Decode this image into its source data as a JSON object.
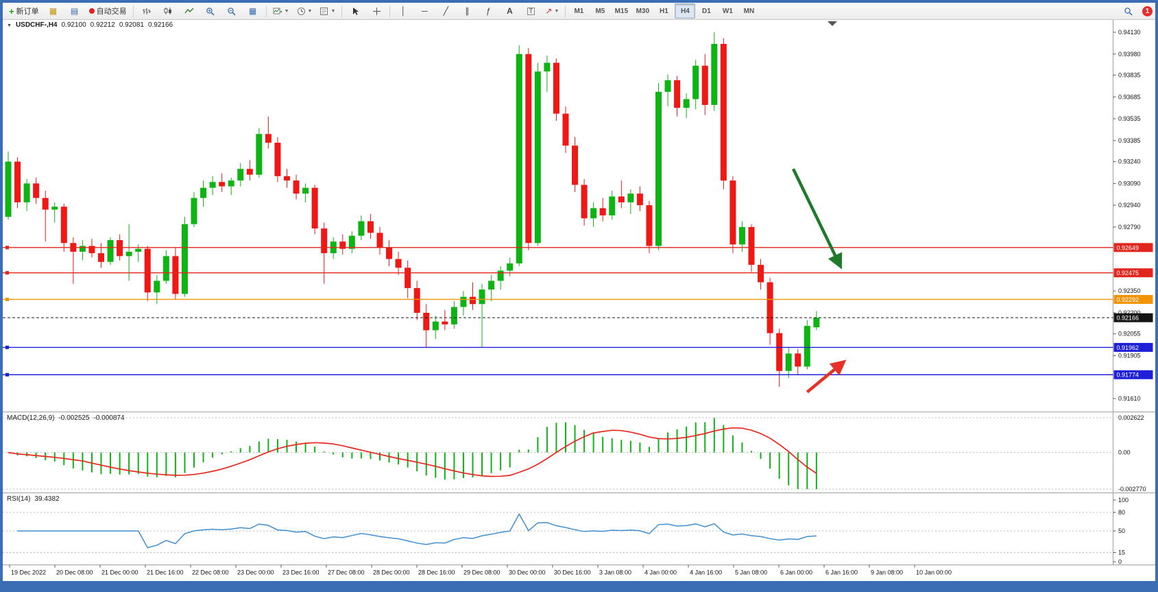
{
  "toolbar": {
    "new_order": "新订单",
    "autotrading": "自动交易",
    "timeframes": [
      "M1",
      "M5",
      "M15",
      "M30",
      "H1",
      "H4",
      "D1",
      "W1",
      "MN"
    ],
    "active_timeframe": "H4",
    "badge_count": "1"
  },
  "chart": {
    "symbol_period": "USDCHF-,H4",
    "open": "0.92100",
    "high": "0.92212",
    "low": "0.92081",
    "close": "0.92166"
  },
  "macd_panel": {
    "title": "MACD(12,26,9)",
    "main_value": "-0.002525",
    "signal_value": "-0.000874"
  },
  "rsi_panel": {
    "title": "RSI(14)",
    "value": "39.4382"
  },
  "chart_data": {
    "type": "candlestick",
    "symbol": "USDCHF-",
    "timeframe": "H4",
    "colors": {
      "up": "#0eb414",
      "down": "#f01814",
      "macd_histogram": "#0eb414",
      "macd_signal": "#e8261b",
      "rsi_line": "#3f8fd2"
    },
    "y_axis": {
      "max": 0.9413,
      "min": 0.9161,
      "ticks": [
        "0.94130",
        "0.93980",
        "0.93835",
        "0.93685",
        "0.93535",
        "0.93385",
        "0.93240",
        "0.93090",
        "0.92940",
        "0.92790",
        "0.92350",
        "0.92200",
        "0.92055",
        "0.91905",
        "0.91610"
      ]
    },
    "x_labels": [
      "19 Dec 2022",
      "20 Dec 08:00",
      "21 Dec 00:00",
      "21 Dec 16:00",
      "22 Dec 08:00",
      "23 Dec 00:00",
      "23 Dec 16:00",
      "27 Dec 08:00",
      "28 Dec 00:00",
      "28 Dec 16:00",
      "29 Dec 08:00",
      "30 Dec 00:00",
      "30 Dec 16:00",
      "3 Jan 08:00",
      "4 Jan 00:00",
      "4 Jan 16:00",
      "5 Jan 08:00",
      "6 Jan 00:00",
      "6 Jan 16:00",
      "9 Jan 08:00",
      "10 Jan 00:00"
    ],
    "candles": [
      [
        0.9286,
        0.9331,
        0.9284,
        0.9324
      ],
      [
        0.9324,
        0.9327,
        0.9292,
        0.9296
      ],
      [
        0.9296,
        0.9312,
        0.929,
        0.9309
      ],
      [
        0.9309,
        0.9313,
        0.9295,
        0.9299
      ],
      [
        0.9299,
        0.9304,
        0.9269,
        0.9291
      ],
      [
        0.9291,
        0.9296,
        0.9282,
        0.9293
      ],
      [
        0.9293,
        0.9295,
        0.9262,
        0.9268
      ],
      [
        0.9268,
        0.9272,
        0.924,
        0.9262
      ],
      [
        0.9262,
        0.927,
        0.9256,
        0.9266
      ],
      [
        0.9266,
        0.9271,
        0.9258,
        0.9261
      ],
      [
        0.9261,
        0.9268,
        0.9251,
        0.9255
      ],
      [
        0.9255,
        0.9272,
        0.9253,
        0.927
      ],
      [
        0.927,
        0.9274,
        0.9256,
        0.9259
      ],
      [
        0.9259,
        0.9281,
        0.9242,
        0.9262
      ],
      [
        0.9262,
        0.9267,
        0.9255,
        0.9264
      ],
      [
        0.9264,
        0.9266,
        0.9228,
        0.9234
      ],
      [
        0.9234,
        0.9246,
        0.9226,
        0.9242
      ],
      [
        0.9242,
        0.9263,
        0.924,
        0.9259
      ],
      [
        0.9259,
        0.9265,
        0.9229,
        0.9233
      ],
      [
        0.9233,
        0.9286,
        0.9231,
        0.9281
      ],
      [
        0.9281,
        0.9303,
        0.9279,
        0.9299
      ],
      [
        0.9299,
        0.9311,
        0.9293,
        0.9306
      ],
      [
        0.9306,
        0.9314,
        0.9301,
        0.931
      ],
      [
        0.931,
        0.9316,
        0.9303,
        0.9307
      ],
      [
        0.9307,
        0.9313,
        0.9301,
        0.9311
      ],
      [
        0.9311,
        0.9323,
        0.9307,
        0.9319
      ],
      [
        0.9319,
        0.9325,
        0.9311,
        0.9315
      ],
      [
        0.9315,
        0.9347,
        0.9313,
        0.9343
      ],
      [
        0.9343,
        0.9355,
        0.9333,
        0.9337
      ],
      [
        0.9337,
        0.9341,
        0.931,
        0.9314
      ],
      [
        0.9314,
        0.9319,
        0.9306,
        0.9311
      ],
      [
        0.9311,
        0.9315,
        0.9298,
        0.9302
      ],
      [
        0.9302,
        0.9309,
        0.9296,
        0.9306
      ],
      [
        0.9306,
        0.9308,
        0.9274,
        0.9278
      ],
      [
        0.9278,
        0.9282,
        0.924,
        0.9261
      ],
      [
        0.9261,
        0.9272,
        0.9257,
        0.9269
      ],
      [
        0.9269,
        0.9274,
        0.926,
        0.9264
      ],
      [
        0.9264,
        0.9276,
        0.9261,
        0.9273
      ],
      [
        0.9273,
        0.9287,
        0.927,
        0.9283
      ],
      [
        0.9283,
        0.9288,
        0.9271,
        0.9275
      ],
      [
        0.9275,
        0.9279,
        0.926,
        0.9265
      ],
      [
        0.9265,
        0.927,
        0.9252,
        0.9257
      ],
      [
        0.9257,
        0.9262,
        0.9246,
        0.9251
      ],
      [
        0.9251,
        0.9256,
        0.923,
        0.9237
      ],
      [
        0.9237,
        0.9242,
        0.9215,
        0.922
      ],
      [
        0.922,
        0.9226,
        0.9196,
        0.9208
      ],
      [
        0.9208,
        0.9218,
        0.9202,
        0.9214
      ],
      [
        0.9214,
        0.9222,
        0.9208,
        0.9212
      ],
      [
        0.9212,
        0.9228,
        0.9209,
        0.9224
      ],
      [
        0.9224,
        0.9235,
        0.9218,
        0.9231
      ],
      [
        0.9231,
        0.9241,
        0.9222,
        0.9226
      ],
      [
        0.9226,
        0.924,
        0.9196,
        0.9236
      ],
      [
        0.9236,
        0.9246,
        0.9228,
        0.9242
      ],
      [
        0.9242,
        0.9252,
        0.9236,
        0.9249
      ],
      [
        0.9249,
        0.9258,
        0.9245,
        0.9254
      ],
      [
        0.9254,
        0.9404,
        0.9252,
        0.9398
      ],
      [
        0.9398,
        0.9402,
        0.9263,
        0.9268
      ],
      [
        0.9268,
        0.9392,
        0.9266,
        0.9386
      ],
      [
        0.9386,
        0.9397,
        0.9372,
        0.9392
      ],
      [
        0.9392,
        0.9395,
        0.9352,
        0.9357
      ],
      [
        0.9357,
        0.9362,
        0.933,
        0.9335
      ],
      [
        0.9335,
        0.9341,
        0.9303,
        0.9308
      ],
      [
        0.9308,
        0.9312,
        0.928,
        0.9285
      ],
      [
        0.9285,
        0.9296,
        0.9279,
        0.9292
      ],
      [
        0.9292,
        0.9299,
        0.9283,
        0.9287
      ],
      [
        0.9287,
        0.9304,
        0.9284,
        0.93
      ],
      [
        0.93,
        0.9311,
        0.9292,
        0.9296
      ],
      [
        0.9296,
        0.9305,
        0.9288,
        0.9302
      ],
      [
        0.9302,
        0.9307,
        0.929,
        0.9294
      ],
      [
        0.9294,
        0.9297,
        0.9261,
        0.9266
      ],
      [
        0.9266,
        0.9378,
        0.9263,
        0.9372
      ],
      [
        0.9372,
        0.9384,
        0.9362,
        0.938
      ],
      [
        0.938,
        0.9383,
        0.9355,
        0.9361
      ],
      [
        0.9361,
        0.9371,
        0.9354,
        0.9367
      ],
      [
        0.9367,
        0.9394,
        0.936,
        0.939
      ],
      [
        0.939,
        0.9398,
        0.9356,
        0.9363
      ],
      [
        0.9363,
        0.9413,
        0.9359,
        0.9405
      ],
      [
        0.9405,
        0.9409,
        0.9305,
        0.9311
      ],
      [
        0.9311,
        0.9314,
        0.9261,
        0.9267
      ],
      [
        0.9267,
        0.9283,
        0.9262,
        0.9279
      ],
      [
        0.9279,
        0.9281,
        0.9248,
        0.9253
      ],
      [
        0.9253,
        0.9257,
        0.9236,
        0.9241
      ],
      [
        0.9241,
        0.9244,
        0.9198,
        0.9206
      ],
      [
        0.9206,
        0.9209,
        0.9169,
        0.918
      ],
      [
        0.918,
        0.9196,
        0.9175,
        0.9192
      ],
      [
        0.9192,
        0.9195,
        0.9177,
        0.9183
      ],
      [
        0.9183,
        0.9215,
        0.9181,
        0.9211
      ],
      [
        0.921,
        0.92212,
        0.92081,
        0.92166
      ]
    ],
    "hlines": [
      {
        "price": 0.92649,
        "label": "0.92649",
        "color": "#e3261d",
        "name": "resistance-line-1"
      },
      {
        "price": 0.92475,
        "label": "0.92475",
        "color": "#e3261d",
        "name": "resistance-line-2"
      },
      {
        "price": 0.92292,
        "label": "0.92292",
        "color": "#f2940a",
        "name": "pivot-line"
      },
      {
        "price": 0.91962,
        "label": "0.91962",
        "color": "#1f1fd9",
        "name": "support-line-1"
      },
      {
        "price": 0.91774,
        "label": "0.91774",
        "color": "#1f1fd9",
        "name": "support-line-2"
      }
    ],
    "current_price": {
      "price": 0.92166,
      "label": "0.92166",
      "color": "#151515"
    },
    "arrows": [
      {
        "name": "down-trend-arrow",
        "color": "#217a2b",
        "from": {
          "i": 84.5,
          "p": 0.9319
        },
        "to": {
          "i": 89.5,
          "p": 0.9253
        }
      },
      {
        "name": "bounce-up-arrow",
        "color": "#e63226",
        "from": {
          "i": 86.0,
          "p": 0.91655
        },
        "to": {
          "i": 89.8,
          "p": 0.91855
        }
      }
    ],
    "indicators": {
      "macd": {
        "label": "MACD(12,26,9)",
        "fast": 12,
        "slow": 26,
        "signal": 9,
        "main_value": "-0.002525",
        "signal_value": "-0.000874",
        "range": [
          -0.00277,
          0.002622
        ],
        "scale_labels": [
          [
            "0.002622",
            0.002622
          ],
          [
            "0.00",
            0
          ],
          [
            "-0.002770",
            -0.00277
          ]
        ]
      },
      "rsi": {
        "label": "RSI(14)",
        "period": 14,
        "value": "39.4382",
        "levels": [
          80,
          50,
          15
        ],
        "scale_labels": [
          [
            "100",
            100
          ],
          [
            "80",
            80
          ],
          [
            "50",
            50
          ],
          [
            "15",
            15
          ],
          [
            "0",
            0
          ]
        ]
      }
    }
  }
}
